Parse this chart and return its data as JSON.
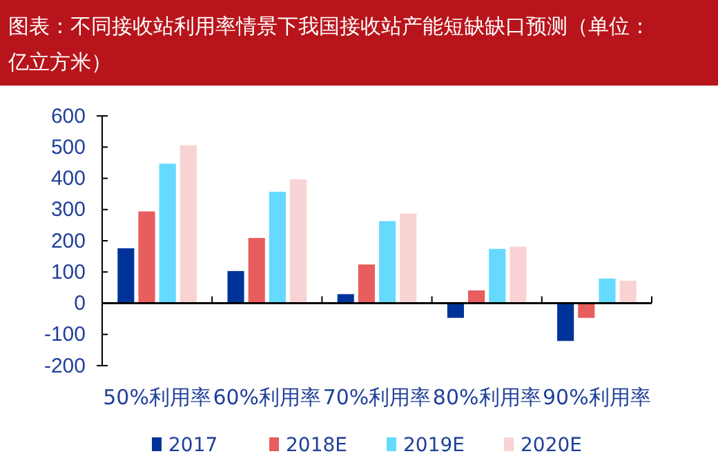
{
  "chart_data": {
    "type": "bar",
    "title": "图表：不同接收站利用率情景下我国接收站产能短缺缺口预测（单位：亿立方米）",
    "categories": [
      "50%利用率",
      "60%利用率",
      "70%利用率",
      "80%利用率",
      "90%利用率"
    ],
    "series": [
      {
        "name": "2017",
        "color": "#003399",
        "values": [
          176,
          103,
          29,
          -47,
          -121
        ]
      },
      {
        "name": "2018E",
        "color": "#e85d5d",
        "values": [
          294,
          209,
          124,
          41,
          -47
        ]
      },
      {
        "name": "2019E",
        "color": "#66d9ff",
        "values": [
          447,
          357,
          263,
          174,
          79
        ]
      },
      {
        "name": "2020E",
        "color": "#f9d3d3",
        "values": [
          506,
          397,
          287,
          181,
          72
        ]
      }
    ],
    "ylim": [
      -200,
      600
    ],
    "yticks": [
      -200,
      -100,
      0,
      100,
      200,
      300,
      400,
      500,
      600
    ],
    "legend": "bottom"
  }
}
